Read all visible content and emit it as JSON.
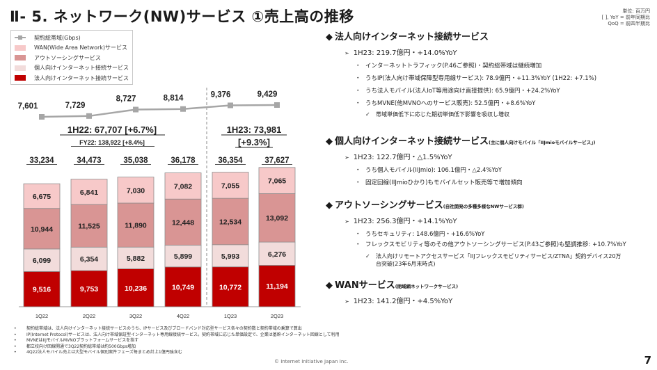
{
  "header": {
    "title": "Ⅱ- 5.  ネットワーク(NW)サービス  ①売上高の推移",
    "unit_notes": [
      "単位: 百万円",
      "[ ], YoY = 前年同期比",
      "QoQ = 前四半期比"
    ]
  },
  "legend": {
    "items": [
      {
        "label": "契約総帯域(Gbps)",
        "type": "line",
        "color": "#a6a6a6"
      },
      {
        "label": "WAN(Wide Area Network)サービス",
        "type": "bar",
        "color": "#f7c9c9"
      },
      {
        "label": "アウトソーシングサービス",
        "type": "bar",
        "color": "#d99594"
      },
      {
        "label": "個人向けインターネット接続サービス",
        "type": "bar",
        "color": "#f2dcdb"
      },
      {
        "label": "法人向けインターネット接続サービス",
        "type": "bar",
        "color": "#c00000"
      }
    ]
  },
  "chart_data": {
    "type": "bar",
    "stacked": true,
    "categories": [
      "1Q22",
      "2Q22",
      "3Q22",
      "4Q22",
      "1Q23",
      "2Q23"
    ],
    "series": [
      {
        "name": "法人向けインターネット接続サービス",
        "color": "#c00000",
        "label_color": "#ffffff",
        "values": [
          9516,
          9753,
          10236,
          10749,
          10772,
          11194
        ],
        "labels": [
          "9,516",
          "9,753",
          "10,236",
          "10,749",
          "10,772",
          "11,194"
        ]
      },
      {
        "name": "個人向けインターネット接続サービス",
        "color": "#f2dcdb",
        "label_color": "#222222",
        "values": [
          6099,
          6354,
          5882,
          5899,
          5993,
          6276
        ],
        "labels": [
          "6,099",
          "6,354",
          "5,882",
          "5,899",
          "5,993",
          "6,276"
        ]
      },
      {
        "name": "アウトソーシングサービス",
        "color": "#d99594",
        "label_color": "#222222",
        "values": [
          10944,
          11525,
          11890,
          12448,
          12534,
          13092
        ],
        "labels": [
          "10,944",
          "11,525",
          "11,890",
          "12,448",
          "12,534",
          "13,092"
        ]
      },
      {
        "name": "WAN(Wide Area Network)サービス",
        "color": "#f7c9c9",
        "label_color": "#222222",
        "values": [
          6675,
          6841,
          7030,
          7082,
          7055,
          7065
        ],
        "labels": [
          "6,675",
          "6,841",
          "7,030",
          "7,082",
          "7,055",
          "7,065"
        ]
      }
    ],
    "totals": [
      33234,
      34473,
      35038,
      36178,
      36354,
      37627
    ],
    "total_labels": [
      "33,234",
      "34,473",
      "35,038",
      "36,178",
      "36,354",
      "37,627"
    ],
    "line_series": {
      "name": "契約総帯域(Gbps)",
      "color": "#a6a6a6",
      "values": [
        7601,
        7729,
        8727,
        8814,
        9376,
        9429
      ],
      "labels": [
        "7,601",
        "7,729",
        "8,727",
        "8,814",
        "9,376",
        "9,429"
      ]
    },
    "annotations": {
      "h1_22": "1H22: 67,707 [+6.7%]",
      "fy22": "FY22: 138,922 [+8.4%]",
      "h1_23_line1": "1H23: 73,981",
      "h1_23_line2": "[+9.3%]"
    },
    "divider_after_category": "4Q22",
    "title": "",
    "xlabel": "",
    "ylabel": "",
    "grid": false,
    "legend_position": "top-left"
  },
  "right_panel": {
    "sections": [
      {
        "heading": "法人向けインターネット接続サービス",
        "heading_sub": "",
        "summary": "1H23: 219.7億円・+14.0%YoY",
        "bullets": [
          "インターネットトラフィック(P.46ご参照)・契約総帯域は継続増加",
          "うちIP(法人向け帯域保障型専用線サービス): 78.9億円・+11.3%YoY (1H22: +7.1%)",
          "うち法人モバイル(法人IoT等用途向け直接提供): 65.9億円・+24.2%YoY",
          "うちMVNE(他MVNOへのサービス販売): 52.5億円・+8.6%YoY"
        ],
        "checks": [
          "帯域単価低下に応じた期初単価低下影響を吸収し増収"
        ]
      },
      {
        "heading": "個人向けインターネット接続サービス",
        "heading_sub": "(主に個人向けモバイル「IIJmioモバイルサービス」)",
        "summary": "1H23: 122.7億円・△1.5%YoY",
        "bullets": [
          "うち個人モバイル(IIJmio): 106.1億円・△2.4%YoY",
          "固定回線(IIJmioひかり)もモバイルセット販売等で増加傾向"
        ],
        "checks": []
      },
      {
        "heading": "アウトソーシングサービス",
        "heading_sub": "(自社開発の多種多様なNWサービス群)",
        "summary": "1H23: 256.3億円・+14.1%YoY",
        "bullets": [
          "うちセキュリティ: 148.6億円・+16.6%YoY",
          "フレックスモビリティ等のその他アウトソーシングサービス(P.43ご参照)も堅調推移: +10.7%YoY"
        ],
        "checks": [
          "法人向けリモートアクセスサービス「IIJフレックスモビリティサービス/ZTNA」契約デバイス20万台突破(23年6月末時点)"
        ]
      },
      {
        "heading": "WANサービス",
        "heading_sub": "(閉域網ネットワークサービス)",
        "summary": "1H23: 141.2億円・+4.5%YoY",
        "bullets": [],
        "checks": []
      }
    ]
  },
  "footnotes": [
    "契約総帯域は、法人向けインターネット接続サービスのうち、IPサービス及びブロードバンド対応型サービス各々の契約数と契約帯域の乗算で算出",
    "IP(Internet Protocol)サービスは、法人向け帯域保証型インターネット専用線接続サービス。契約帯域に応じた単価設定で、企業は基幹インターネット回線として利用",
    "MVNEはIIJモバイルMVNOプラットフォームサービスを指す",
    "都立校向け回線開通で3Q22契約総帯域は約500Gbps増加",
    "4Q22法人モバイル売上は大型モバイル個別案件フェーズ毎まとめ計上1億円強含む"
  ],
  "footer": {
    "copyright": "© Internet Initiative Japan Inc.",
    "page_number": "7"
  }
}
